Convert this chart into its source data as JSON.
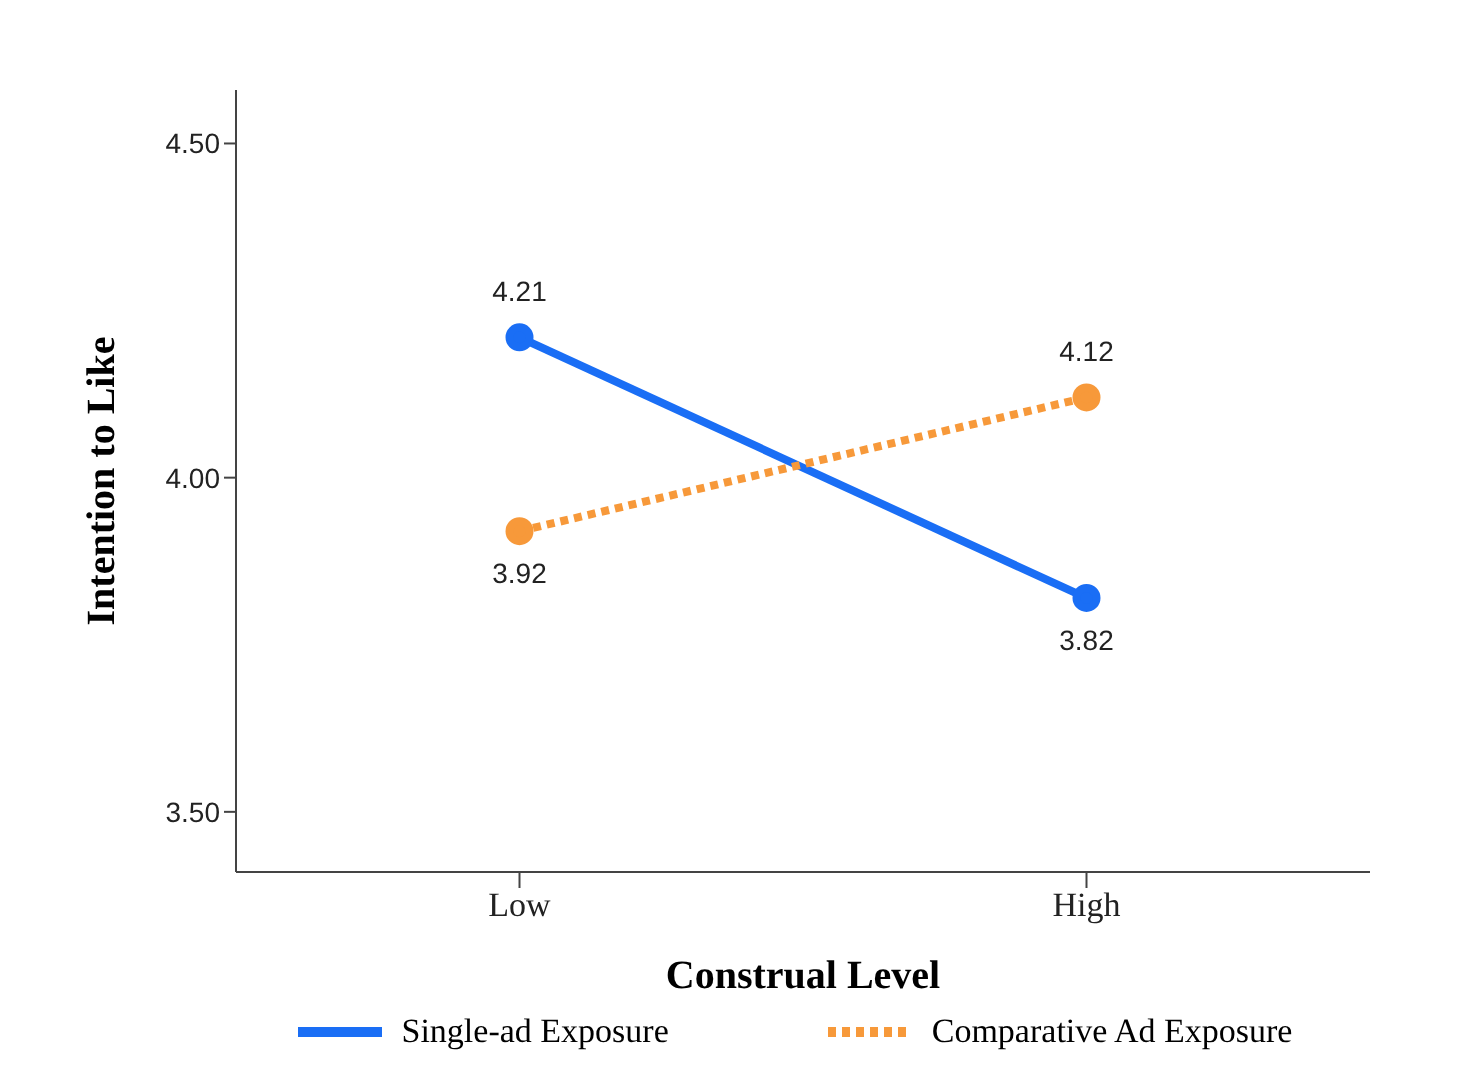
{
  "chart_data": {
    "type": "line",
    "xlabel": "Construal Level",
    "ylabel": "Intention to Like",
    "categories": [
      "Low",
      "High"
    ],
    "series": [
      {
        "name": "Single-ad Exposure",
        "color": "#1a6ef5",
        "values": [
          4.21,
          3.82
        ],
        "line_style": "solid"
      },
      {
        "name": "Comparative Ad Exposure",
        "color": "#f7993a",
        "values": [
          3.92,
          4.12
        ],
        "line_style": "dotted"
      }
    ],
    "ylim": [
      3.41,
      4.58
    ],
    "yticks": [
      {
        "value": 3.5,
        "label": "3.50"
      },
      {
        "value": 4,
        "label": "4.00"
      },
      {
        "value": 4.5,
        "label": "4.50"
      }
    ],
    "data_labels": true,
    "marker": "circle",
    "grid": false,
    "legend": "bottom"
  }
}
